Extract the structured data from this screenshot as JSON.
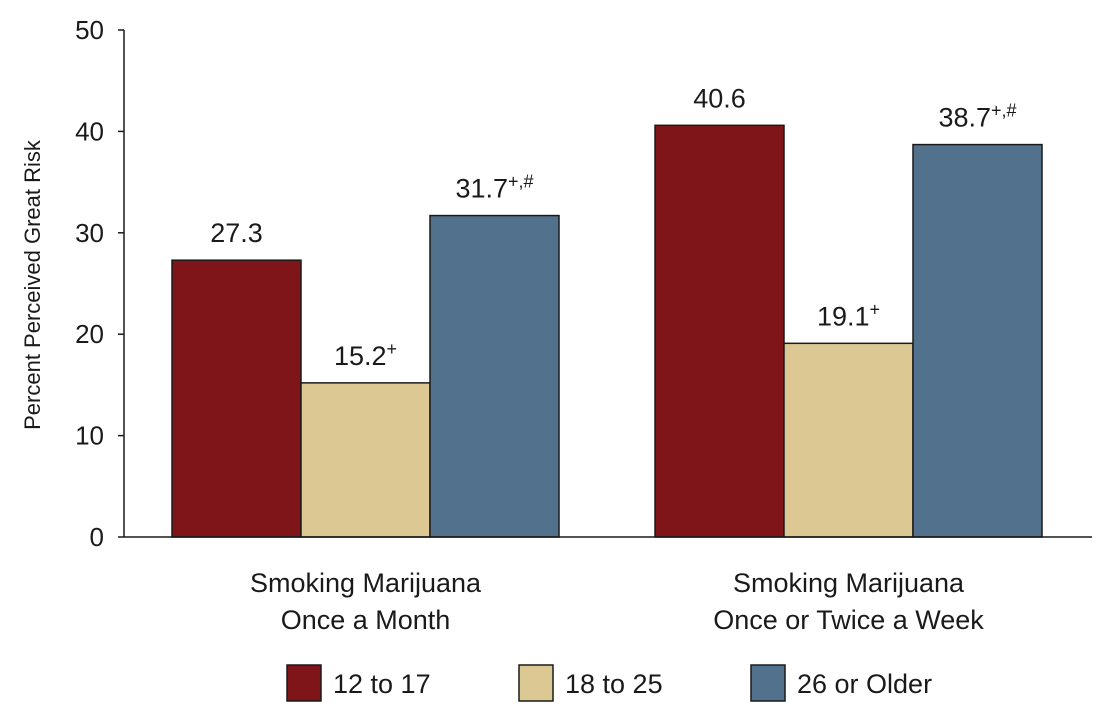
{
  "chart_data": {
    "type": "bar",
    "ylabel": "Percent Perceived Great Risk",
    "ylim": [
      0,
      50
    ],
    "yticks": [
      "0",
      "10",
      "20",
      "30",
      "40",
      "50"
    ],
    "categories": [
      [
        "Smoking Marijuana",
        "Once a Month"
      ],
      [
        "Smoking Marijuana",
        "Once or Twice a Week"
      ]
    ],
    "series": [
      {
        "name": "12 to 17",
        "color": "#7f1518",
        "values": [
          27.3,
          40.6
        ],
        "labels": [
          {
            "value": "27.3",
            "sup": ""
          },
          {
            "value": "40.6",
            "sup": ""
          }
        ]
      },
      {
        "name": "18 to 25",
        "color": "#dcc893",
        "values": [
          15.2,
          19.1
        ],
        "labels": [
          {
            "value": "15.2",
            "sup": "+"
          },
          {
            "value": "19.1",
            "sup": "+"
          }
        ]
      },
      {
        "name": "26 or Older",
        "color": "#51718c",
        "values": [
          31.7,
          38.7
        ],
        "labels": [
          {
            "value": "31.7",
            "sup": "+,#"
          },
          {
            "value": "38.7",
            "sup": "+,#"
          }
        ]
      }
    ],
    "legend_position": "bottom",
    "grid": false
  }
}
